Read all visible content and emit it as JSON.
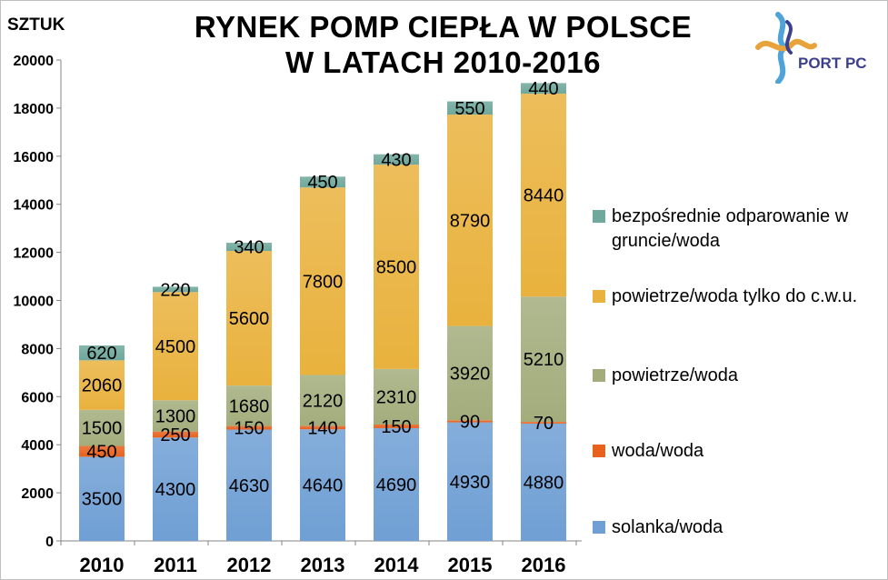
{
  "unit_label": "SZTUK",
  "title_line1": "RYNEK POMP CIEPŁA W POLSCE",
  "title_line2": "W LATACH 2010-2016",
  "logo": {
    "text": "PORT PC",
    "colors": [
      "#e8a33a",
      "#4fa3d9",
      "#3b3f8e"
    ]
  },
  "chart_data": {
    "type": "bar",
    "stacked": true,
    "categories": [
      "2010",
      "2011",
      "2012",
      "2013",
      "2014",
      "2015",
      "2016"
    ],
    "ylim": [
      0,
      20000
    ],
    "yticks": [
      0,
      2000,
      4000,
      6000,
      8000,
      10000,
      12000,
      14000,
      16000,
      18000,
      20000
    ],
    "grid": false,
    "legend_position": "right",
    "series": [
      {
        "name": "solanka/woda",
        "color": "#6f9fd4",
        "values": [
          3500,
          4300,
          4630,
          4640,
          4690,
          4930,
          4880
        ]
      },
      {
        "name": "woda/woda",
        "color": "#e8621e",
        "values": [
          450,
          250,
          150,
          140,
          150,
          90,
          70
        ]
      },
      {
        "name": "powietrze/woda",
        "color": "#a3ad7c",
        "values": [
          1500,
          1300,
          1680,
          2120,
          2310,
          3920,
          5210
        ]
      },
      {
        "name": "powietrze/woda tylko do c.w.u.",
        "color": "#e9b23e",
        "values": [
          2060,
          4500,
          5600,
          7800,
          8500,
          8790,
          8440
        ]
      },
      {
        "name": "bezpośrednie odparowanie w gruncie/woda",
        "color": "#6fa89c",
        "values": [
          620,
          220,
          340,
          450,
          430,
          550,
          440
        ]
      }
    ]
  }
}
